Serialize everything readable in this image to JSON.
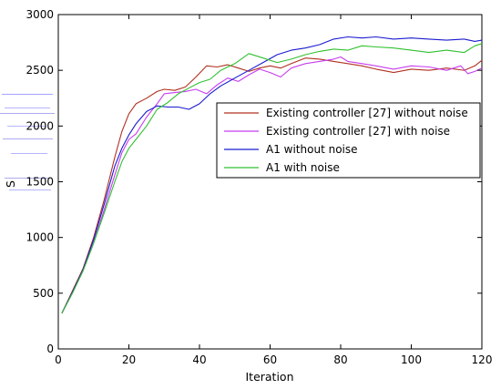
{
  "chart_data": {
    "type": "line",
    "title": "",
    "xlabel": "Iteration",
    "ylabel": "S",
    "xlim": [
      0,
      120
    ],
    "ylim": [
      0,
      3000
    ],
    "xticks": [
      0,
      20,
      40,
      60,
      80,
      100,
      120
    ],
    "yticks": [
      0,
      500,
      1000,
      1500,
      2000,
      2500,
      3000
    ],
    "grid": false,
    "legend_position": "right",
    "series": [
      {
        "name": "Existing controller [27] without noise",
        "color": "#b03020",
        "points": [
          [
            1,
            320
          ],
          [
            4,
            520
          ],
          [
            7,
            720
          ],
          [
            10,
            1000
          ],
          [
            13,
            1340
          ],
          [
            16,
            1720
          ],
          [
            18,
            1950
          ],
          [
            20,
            2110
          ],
          [
            22,
            2200
          ],
          [
            25,
            2250
          ],
          [
            28,
            2310
          ],
          [
            30,
            2330
          ],
          [
            33,
            2320
          ],
          [
            36,
            2350
          ],
          [
            39,
            2440
          ],
          [
            42,
            2540
          ],
          [
            45,
            2530
          ],
          [
            48,
            2550
          ],
          [
            51,
            2520
          ],
          [
            54,
            2490
          ],
          [
            57,
            2520
          ],
          [
            60,
            2540
          ],
          [
            63,
            2520
          ],
          [
            66,
            2560
          ],
          [
            70,
            2610
          ],
          [
            74,
            2600
          ],
          [
            78,
            2580
          ],
          [
            82,
            2560
          ],
          [
            86,
            2540
          ],
          [
            90,
            2510
          ],
          [
            95,
            2480
          ],
          [
            100,
            2510
          ],
          [
            105,
            2500
          ],
          [
            110,
            2520
          ],
          [
            115,
            2500
          ],
          [
            118,
            2540
          ],
          [
            120,
            2590
          ]
        ]
      },
      {
        "name": "Existing controller [27] with noise",
        "color": "#c83cf0",
        "points": [
          [
            1,
            320
          ],
          [
            4,
            500
          ],
          [
            7,
            700
          ],
          [
            10,
            950
          ],
          [
            13,
            1250
          ],
          [
            16,
            1560
          ],
          [
            18,
            1760
          ],
          [
            20,
            1880
          ],
          [
            22,
            1930
          ],
          [
            25,
            2080
          ],
          [
            28,
            2200
          ],
          [
            30,
            2290
          ],
          [
            33,
            2300
          ],
          [
            36,
            2310
          ],
          [
            39,
            2330
          ],
          [
            42,
            2290
          ],
          [
            45,
            2370
          ],
          [
            48,
            2430
          ],
          [
            51,
            2400
          ],
          [
            54,
            2460
          ],
          [
            57,
            2510
          ],
          [
            60,
            2480
          ],
          [
            63,
            2440
          ],
          [
            66,
            2520
          ],
          [
            70,
            2560
          ],
          [
            74,
            2580
          ],
          [
            78,
            2600
          ],
          [
            80,
            2620
          ],
          [
            82,
            2580
          ],
          [
            86,
            2560
          ],
          [
            90,
            2540
          ],
          [
            95,
            2510
          ],
          [
            100,
            2540
          ],
          [
            105,
            2530
          ],
          [
            110,
            2500
          ],
          [
            114,
            2540
          ],
          [
            116,
            2470
          ],
          [
            118,
            2490
          ],
          [
            120,
            2520
          ]
        ]
      },
      {
        "name": "A1 without noise",
        "color": "#1a1ad0",
        "points": [
          [
            1,
            320
          ],
          [
            4,
            510
          ],
          [
            7,
            710
          ],
          [
            10,
            980
          ],
          [
            13,
            1300
          ],
          [
            16,
            1640
          ],
          [
            18,
            1800
          ],
          [
            20,
            1920
          ],
          [
            22,
            2020
          ],
          [
            25,
            2130
          ],
          [
            28,
            2180
          ],
          [
            31,
            2170
          ],
          [
            34,
            2170
          ],
          [
            37,
            2150
          ],
          [
            40,
            2200
          ],
          [
            43,
            2290
          ],
          [
            46,
            2360
          ],
          [
            50,
            2430
          ],
          [
            54,
            2500
          ],
          [
            58,
            2570
          ],
          [
            62,
            2640
          ],
          [
            66,
            2680
          ],
          [
            70,
            2700
          ],
          [
            74,
            2730
          ],
          [
            78,
            2780
          ],
          [
            82,
            2800
          ],
          [
            86,
            2790
          ],
          [
            90,
            2800
          ],
          [
            95,
            2780
          ],
          [
            100,
            2790
          ],
          [
            105,
            2780
          ],
          [
            110,
            2770
          ],
          [
            115,
            2780
          ],
          [
            118,
            2760
          ],
          [
            120,
            2770
          ]
        ]
      },
      {
        "name": "A1 with noise",
        "color": "#30c030",
        "points": [
          [
            1,
            320
          ],
          [
            4,
            500
          ],
          [
            7,
            700
          ],
          [
            10,
            950
          ],
          [
            13,
            1220
          ],
          [
            16,
            1500
          ],
          [
            18,
            1680
          ],
          [
            20,
            1800
          ],
          [
            22,
            1880
          ],
          [
            25,
            2000
          ],
          [
            28,
            2150
          ],
          [
            31,
            2210
          ],
          [
            34,
            2290
          ],
          [
            37,
            2340
          ],
          [
            40,
            2390
          ],
          [
            43,
            2420
          ],
          [
            46,
            2500
          ],
          [
            50,
            2560
          ],
          [
            54,
            2650
          ],
          [
            58,
            2610
          ],
          [
            62,
            2570
          ],
          [
            66,
            2600
          ],
          [
            70,
            2640
          ],
          [
            74,
            2670
          ],
          [
            78,
            2690
          ],
          [
            82,
            2680
          ],
          [
            86,
            2720
          ],
          [
            90,
            2710
          ],
          [
            95,
            2700
          ],
          [
            100,
            2680
          ],
          [
            105,
            2660
          ],
          [
            110,
            2680
          ],
          [
            115,
            2660
          ],
          [
            118,
            2720
          ],
          [
            120,
            2740
          ]
        ]
      }
    ]
  }
}
